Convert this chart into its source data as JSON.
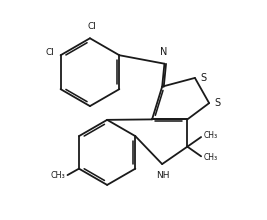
{
  "background": "#ffffff",
  "line_color": "#1a1a1a",
  "line_width": 1.3,
  "figsize": [
    2.67,
    2.2
  ],
  "dpi": 100,
  "xlim": [
    -0.3,
    10.3
  ],
  "ylim": [
    -0.3,
    9.3
  ]
}
